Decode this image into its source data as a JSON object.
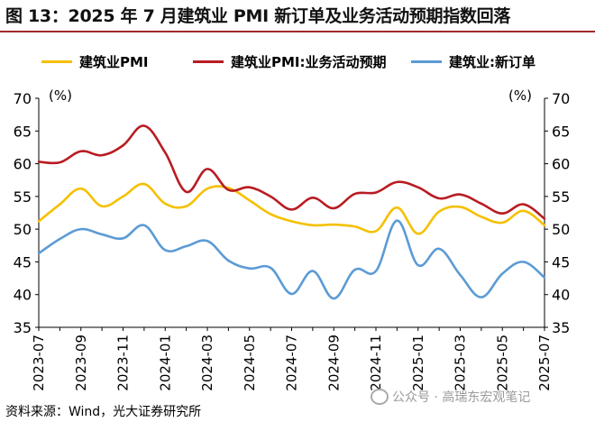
{
  "title": "图 13：2025 年 7 月建筑业 PMI 新订单及业务活动预期指数回落",
  "source": "资料来源：Wind，光大证券研究所",
  "watermark": "公众号 · 高瑞东宏观笔记",
  "unit_left": "(%)",
  "unit_right": "(%)",
  "colors": {
    "yellow": "#f5c000",
    "red": "#b81c22",
    "blue": "#5b9bd5",
    "axis": "#000000",
    "title_rule": "#a0292b"
  },
  "chart_data": {
    "type": "line",
    "ylim": [
      35,
      70
    ],
    "yticks": [
      35,
      40,
      45,
      50,
      55,
      60,
      65,
      70
    ],
    "xticklabels": [
      "2023-07",
      "2023-09",
      "2023-11",
      "2024-01",
      "2024-03",
      "2024-05",
      "2024-07",
      "2024-09",
      "2024-11",
      "2025-01",
      "2025-03",
      "2025-05",
      "2025-07"
    ],
    "x": [
      "2023-07",
      "2023-08",
      "2023-09",
      "2023-10",
      "2023-11",
      "2023-12",
      "2024-01",
      "2024-02",
      "2024-03",
      "2024-04",
      "2024-05",
      "2024-06",
      "2024-07",
      "2024-08",
      "2024-09",
      "2024-10",
      "2024-11",
      "2024-12",
      "2025-01",
      "2025-02",
      "2025-03",
      "2025-04",
      "2025-05",
      "2025-06",
      "2025-07"
    ],
    "series": [
      {
        "name": "建筑业PMI",
        "color": "#f5c000",
        "values": [
          51.2,
          53.8,
          56.2,
          53.5,
          55.0,
          56.9,
          53.9,
          53.5,
          56.2,
          56.3,
          54.4,
          52.3,
          51.2,
          50.6,
          50.7,
          50.4,
          49.7,
          53.3,
          49.3,
          52.7,
          53.4,
          51.9,
          51.0,
          52.8,
          50.6
        ]
      },
      {
        "name": "建筑业PMI:业务活动预期",
        "color": "#b81c22",
        "values": [
          60.3,
          60.2,
          61.9,
          61.3,
          62.8,
          65.8,
          61.7,
          55.7,
          59.2,
          56.0,
          56.4,
          55.0,
          53.0,
          54.8,
          53.2,
          55.4,
          55.6,
          57.2,
          56.4,
          54.7,
          55.3,
          53.9,
          52.4,
          53.8,
          51.6
        ]
      },
      {
        "name": "建筑业:新订单",
        "color": "#5b9bd5",
        "values": [
          46.3,
          48.5,
          50.0,
          49.2,
          48.6,
          50.6,
          46.8,
          47.4,
          48.2,
          45.2,
          44.0,
          44.1,
          40.1,
          43.6,
          39.4,
          43.8,
          43.6,
          51.3,
          44.5,
          47.0,
          43.0,
          39.6,
          43.2,
          45.0,
          42.6
        ]
      }
    ]
  }
}
